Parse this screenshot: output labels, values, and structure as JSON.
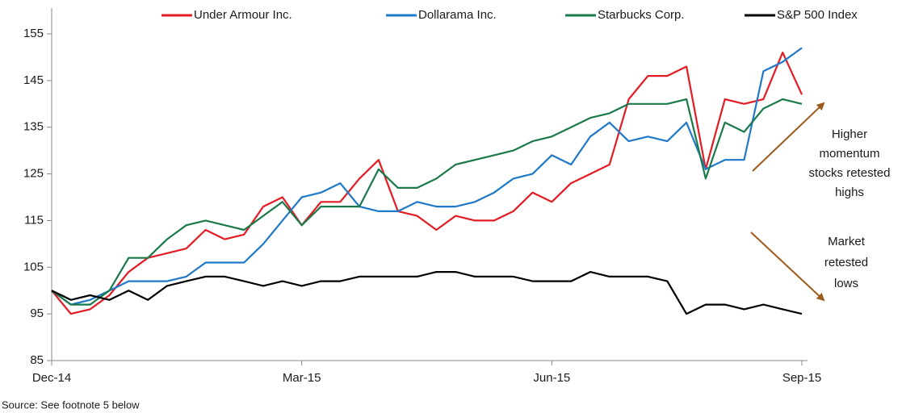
{
  "chart_data": {
    "type": "line",
    "categories": [
      "Dec-14",
      null,
      null,
      null,
      null,
      null,
      null,
      null,
      null,
      null,
      null,
      null,
      null,
      "Mar-15",
      null,
      null,
      null,
      null,
      null,
      null,
      null,
      null,
      null,
      null,
      null,
      null,
      "Jun-15",
      null,
      null,
      null,
      null,
      null,
      null,
      null,
      null,
      null,
      null,
      null,
      null,
      "Sep-15"
    ],
    "series": [
      {
        "name": "Under Armour Inc.",
        "color": "#e31b23",
        "values": [
          100,
          95,
          96,
          99,
          104,
          107,
          108,
          109,
          113,
          111,
          112,
          118,
          120,
          114,
          119,
          119,
          124,
          128,
          117,
          116,
          113,
          116,
          115,
          115,
          117,
          121,
          119,
          123,
          125,
          127,
          141,
          146,
          146,
          148,
          126,
          141,
          140,
          141,
          151,
          142
        ]
      },
      {
        "name": "Dollarama Inc.",
        "color": "#1f78c8",
        "values": [
          100,
          97,
          98,
          100,
          102,
          102,
          102,
          103,
          106,
          106,
          106,
          110,
          115,
          120,
          121,
          123,
          118,
          117,
          117,
          119,
          118,
          118,
          119,
          121,
          124,
          125,
          129,
          127,
          133,
          136,
          132,
          133,
          132,
          136,
          126,
          128,
          128,
          147,
          149,
          152
        ]
      },
      {
        "name": "Starbucks Corp.",
        "color": "#1a7a4a",
        "values": [
          100,
          97,
          97,
          100,
          107,
          107,
          111,
          114,
          115,
          114,
          113,
          116,
          119,
          114,
          118,
          118,
          118,
          126,
          122,
          122,
          124,
          127,
          128,
          129,
          130,
          132,
          133,
          135,
          137,
          138,
          140,
          140,
          140,
          141,
          124,
          136,
          134,
          139,
          141,
          140
        ]
      },
      {
        "name": "S&P 500 Index",
        "color": "#000000",
        "values": [
          100,
          98,
          99,
          98,
          100,
          98,
          101,
          102,
          103,
          103,
          102,
          101,
          102,
          101,
          102,
          102,
          103,
          103,
          103,
          103,
          104,
          104,
          103,
          103,
          103,
          102,
          102,
          102,
          104,
          103,
          103,
          103,
          102,
          95,
          97,
          97,
          96,
          97,
          96,
          95
        ]
      }
    ],
    "ylim": [
      85,
      155
    ],
    "yticks": [
      85,
      95,
      105,
      115,
      125,
      135,
      145,
      155
    ],
    "annotations": [
      {
        "lines": [
          "Higher",
          "momentum",
          "stocks retested",
          "highs"
        ]
      },
      {
        "lines": [
          "Market",
          "retested",
          "lows"
        ]
      }
    ],
    "source": "Source: See footnote 5 below"
  }
}
